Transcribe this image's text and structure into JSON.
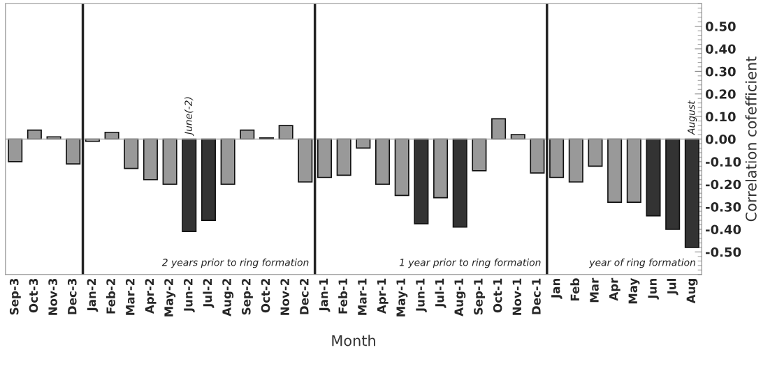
{
  "chart_data": {
    "type": "bar",
    "categories": [
      "Sep-3",
      "Oct-3",
      "Nov-3",
      "Dec-3",
      "Jan-2",
      "Feb-2",
      "Mar-2",
      "Apr-2",
      "May-2",
      "Jun-2",
      "Jul-2",
      "Aug-2",
      "Sep-2",
      "Oct-2",
      "Nov-2",
      "Dec-2",
      "Jan-1",
      "Feb-1",
      "Mar-1",
      "Apr-1",
      "May-1",
      "Jun-1",
      "Jul-1",
      "Aug-1",
      "Sep-1",
      "Oct-1",
      "Nov-1",
      "Dec-1",
      "Jan",
      "Feb",
      "Mar",
      "Apr",
      "May",
      "Jun",
      "Jul",
      "Aug"
    ],
    "values": [
      -0.1,
      0.04,
      0.01,
      -0.11,
      -0.01,
      0.03,
      -0.13,
      -0.18,
      -0.2,
      -0.41,
      -0.36,
      -0.2,
      0.04,
      0.005,
      0.06,
      -0.19,
      -0.17,
      -0.16,
      -0.04,
      -0.2,
      -0.25,
      -0.375,
      -0.26,
      -0.39,
      -0.14,
      0.09,
      0.02,
      -0.15,
      -0.17,
      -0.19,
      -0.12,
      -0.28,
      -0.28,
      -0.34,
      -0.4,
      -0.48
    ],
    "colors": [
      "#999999",
      "#999999",
      "#999999",
      "#999999",
      "#999999",
      "#999999",
      "#999999",
      "#999999",
      "#999999",
      "#333333",
      "#333333",
      "#999999",
      "#999999",
      "#999999",
      "#999999",
      "#999999",
      "#999999",
      "#999999",
      "#999999",
      "#999999",
      "#999999",
      "#333333",
      "#999999",
      "#333333",
      "#999999",
      "#999999",
      "#999999",
      "#999999",
      "#999999",
      "#999999",
      "#999999",
      "#999999",
      "#999999",
      "#333333",
      "#333333",
      "#333333"
    ],
    "xlabel": "Month",
    "ylabel": "Correlation cofefficient",
    "ylim": [
      -0.6,
      0.6
    ],
    "yticks": [
      {
        "value": 0.5,
        "label": "0.50"
      },
      {
        "value": 0.4,
        "label": "0.40"
      },
      {
        "value": 0.3,
        "label": "0.30"
      },
      {
        "value": 0.2,
        "label": "0.20"
      },
      {
        "value": 0.1,
        "label": "0.10"
      },
      {
        "value": 0.0,
        "label": "0.00"
      },
      {
        "value": -0.1,
        "label": "-0.10"
      },
      {
        "value": -0.2,
        "label": "-0.20"
      },
      {
        "value": -0.3,
        "label": "-0.30"
      },
      {
        "value": -0.4,
        "label": "-0.40"
      },
      {
        "value": -0.5,
        "label": "-0.50"
      }
    ],
    "annotations": [
      "June(-2)",
      "August",
      "2 years prior to ring formation",
      "1 year prior to ring formation",
      "year of ring formation"
    ],
    "grid": false
  }
}
